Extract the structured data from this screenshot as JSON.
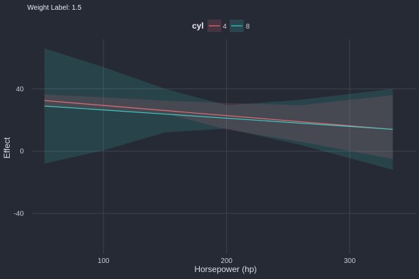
{
  "subtitle": "Weight Label: 1.5",
  "colors": {
    "background": "#252a35",
    "grid": "#3d4350",
    "series_4": "#e06c75",
    "series_8": "#3ec9c1"
  },
  "chart_data": {
    "type": "line",
    "xlabel": "Horsepower (hp)",
    "ylabel": "Effect",
    "xlim": [
      42,
      354
    ],
    "ylim": [
      -66,
      72
    ],
    "x_ticks": [
      100,
      200,
      300
    ],
    "y_ticks": [
      -40,
      0,
      40
    ],
    "grid": true,
    "legend": {
      "title": "cyl",
      "position": "top"
    },
    "series": [
      {
        "name": "4",
        "color": "#e06c75",
        "fit": [
          [
            52,
            32.5
          ],
          [
            335,
            14.0
          ]
        ],
        "ribbon": [
          [
            52,
            36.5,
            28.5
          ],
          [
            100,
            34.6,
            26.5
          ],
          [
            150,
            32.4,
            24.2
          ],
          [
            200,
            31.0,
            14.0
          ],
          [
            260,
            29.5,
            6.0
          ],
          [
            335,
            36.0,
            -5.0
          ]
        ]
      },
      {
        "name": "8",
        "color": "#3ec9c1",
        "fit": [
          [
            52,
            29.0
          ],
          [
            335,
            14.0
          ]
        ],
        "ribbon": [
          [
            52,
            66.0,
            -8.0
          ],
          [
            100,
            54.0,
            0.5
          ],
          [
            150,
            40.0,
            12.0
          ],
          [
            200,
            29.5,
            14.5
          ],
          [
            260,
            33.0,
            4.0
          ],
          [
            335,
            40.0,
            -12.0
          ]
        ]
      }
    ]
  }
}
